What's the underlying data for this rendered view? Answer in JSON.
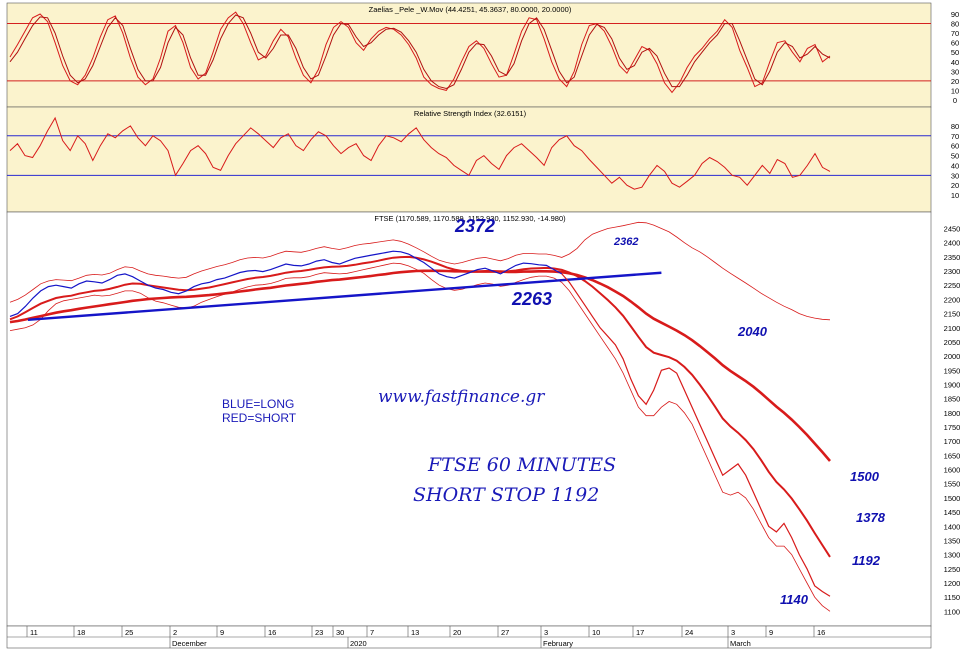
{
  "chart_data": [
    {
      "panel": "oscillator",
      "type": "line",
      "title": "Zaelias _Pele _W.Mov (44.4251, 45.3637, 80.0000, 20.0000)",
      "ylim": [
        0,
        90
      ],
      "y_ticks": [
        "90",
        "80",
        "70",
        "60",
        "50",
        "40",
        "30",
        "20",
        "10",
        "0"
      ],
      "levels": [
        80,
        20
      ],
      "series": [
        {
          "values": [
            45,
            58,
            72,
            86,
            90,
            82,
            60,
            36,
            20,
            16,
            26,
            44,
            66,
            84,
            88,
            70,
            44,
            24,
            16,
            22,
            44,
            72,
            78,
            60,
            34,
            22,
            28,
            50,
            74,
            86,
            92,
            80,
            60,
            42,
            46,
            62,
            74,
            66,
            44,
            26,
            18,
            32,
            58,
            76,
            82,
            76,
            60,
            52,
            64,
            72,
            76,
            74,
            68,
            58,
            44,
            24,
            16,
            12,
            10,
            22,
            40,
            56,
            62,
            54,
            38,
            24,
            26,
            48,
            72,
            86,
            84,
            64,
            40,
            22,
            14,
            30,
            58,
            78,
            80,
            72,
            56,
            36,
            28,
            42,
            56,
            52,
            38,
            18,
            8,
            18,
            34,
            46,
            54,
            64,
            72,
            84,
            76,
            52,
            34,
            14,
            18,
            40,
            60,
            62,
            50,
            40,
            54,
            58,
            40,
            46
          ]
        },
        {
          "values": [
            40,
            50,
            64,
            78,
            87,
            86,
            70,
            46,
            26,
            18,
            22,
            36,
            56,
            76,
            86,
            78,
            54,
            32,
            20,
            20,
            34,
            60,
            76,
            68,
            44,
            26,
            26,
            42,
            64,
            80,
            89,
            86,
            70,
            50,
            44,
            54,
            68,
            68,
            54,
            34,
            22,
            26,
            46,
            68,
            80,
            79,
            66,
            56,
            60,
            68,
            74,
            75,
            71,
            62,
            50,
            32,
            20,
            14,
            12,
            16,
            32,
            50,
            59,
            58,
            46,
            30,
            26,
            38,
            62,
            80,
            86,
            74,
            52,
            30,
            18,
            24,
            46,
            68,
            79,
            76,
            64,
            44,
            32,
            36,
            50,
            54,
            46,
            28,
            14,
            14,
            26,
            40,
            50,
            60,
            68,
            80,
            80,
            62,
            42,
            22,
            16,
            30,
            50,
            60,
            56,
            44,
            48,
            56,
            48,
            44
          ]
        }
      ]
    },
    {
      "panel": "rsi",
      "type": "line",
      "title": "Relative Strength Index (32.6151)",
      "ylim": [
        0,
        90
      ],
      "y_ticks": [
        "80",
        "70",
        "60",
        "50",
        "40",
        "30",
        "20",
        "10"
      ],
      "levels": [
        70,
        30
      ],
      "series": [
        {
          "values": [
            55,
            62,
            50,
            48,
            60,
            75,
            88,
            65,
            55,
            70,
            62,
            45,
            60,
            72,
            68,
            75,
            80,
            68,
            60,
            70,
            65,
            55,
            30,
            42,
            55,
            60,
            52,
            38,
            35,
            50,
            62,
            70,
            78,
            72,
            65,
            58,
            68,
            72,
            60,
            55,
            66,
            74,
            70,
            60,
            52,
            58,
            62,
            50,
            45,
            60,
            70,
            68,
            64,
            72,
            78,
            66,
            58,
            52,
            48,
            40,
            35,
            30,
            45,
            50,
            42,
            36,
            50,
            58,
            62,
            55,
            48,
            40,
            58,
            66,
            70,
            60,
            55,
            46,
            38,
            30,
            22,
            28,
            20,
            16,
            18,
            30,
            40,
            34,
            22,
            18,
            24,
            30,
            42,
            48,
            44,
            38,
            30,
            28,
            20,
            30,
            40,
            32,
            46,
            42,
            28,
            30,
            40,
            52,
            38,
            34
          ]
        }
      ]
    },
    {
      "panel": "price",
      "type": "line",
      "title": "FTSE (1170.589, 1170.589, 1152.930, 1152.930, -14.980)",
      "ylim": [
        1080,
        2480
      ],
      "y_ticks": [
        "2450",
        "2400",
        "2350",
        "2300",
        "2250",
        "2200",
        "2150",
        "2100",
        "2050",
        "2000",
        "1950",
        "1900",
        "1850",
        "1800",
        "1750",
        "1700",
        "1650",
        "1600",
        "1550",
        "1500",
        "1450",
        "1400",
        "1350",
        "1300",
        "1250",
        "1200",
        "1150",
        "1100"
      ],
      "x_ticks": [
        "11",
        "18",
        "25",
        "2",
        "9",
        "16",
        "23",
        "30",
        "7",
        "13",
        "20",
        "27",
        "3",
        "10",
        "17",
        "24",
        "3",
        "9",
        "16"
      ],
      "x_group_labels": [
        "December",
        "2020",
        "February",
        "March"
      ],
      "close": [
        2140,
        2150,
        2175,
        2205,
        2230,
        2245,
        2250,
        2245,
        2240,
        2255,
        2265,
        2262,
        2258,
        2270,
        2285,
        2290,
        2280,
        2265,
        2250,
        2240,
        2235,
        2225,
        2220,
        2230,
        2245,
        2255,
        2260,
        2270,
        2275,
        2285,
        2295,
        2300,
        2302,
        2298,
        2305,
        2315,
        2325,
        2320,
        2318,
        2325,
        2335,
        2340,
        2330,
        2325,
        2335,
        2345,
        2350,
        2355,
        2360,
        2365,
        2370,
        2368,
        2360,
        2345,
        2330,
        2310,
        2290,
        2280,
        2275,
        2285,
        2295,
        2305,
        2310,
        2300,
        2290,
        2305,
        2320,
        2328,
        2326,
        2322,
        2320,
        2305,
        2290,
        2260,
        2220,
        2180,
        2140,
        2100,
        2070,
        2040,
        1990,
        1920,
        1860,
        1830,
        1880,
        1950,
        1958,
        1940,
        1880,
        1820,
        1760,
        1700,
        1640,
        1580,
        1600,
        1620,
        1580,
        1520,
        1460,
        1400,
        1380,
        1410,
        1360,
        1300,
        1250,
        1190,
        1170,
        1153
      ],
      "ma_short": [
        2130,
        2140,
        2155,
        2170,
        2185,
        2195,
        2205,
        2210,
        2213,
        2220,
        2225,
        2230,
        2232,
        2237,
        2244,
        2252,
        2256,
        2255,
        2250,
        2246,
        2242,
        2238,
        2234,
        2232,
        2234,
        2238,
        2242,
        2248,
        2254,
        2260,
        2266,
        2272,
        2276,
        2279,
        2283,
        2288,
        2294,
        2298,
        2300,
        2304,
        2309,
        2313,
        2315,
        2316,
        2318,
        2322,
        2327,
        2331,
        2336,
        2342,
        2347,
        2349,
        2350,
        2347,
        2341,
        2333,
        2323,
        2313,
        2305,
        2300,
        2298,
        2298,
        2300,
        2300,
        2298,
        2299,
        2302,
        2306,
        2309,
        2310,
        2311,
        2309,
        2304,
        2295,
        2282,
        2265,
        2245,
        2222,
        2198,
        2172,
        2142,
        2106,
        2068,
        2032,
        2012,
        2004,
        1996,
        1984,
        1962,
        1934,
        1900,
        1862,
        1822,
        1780,
        1752,
        1730,
        1704,
        1672,
        1634,
        1592,
        1556,
        1530,
        1498,
        1460,
        1420,
        1376,
        1334,
        1292
      ],
      "ma_long": [
        2120,
        2124,
        2129,
        2135,
        2141,
        2147,
        2153,
        2158,
        2162,
        2167,
        2171,
        2175,
        2179,
        2183,
        2187,
        2191,
        2195,
        2198,
        2201,
        2203,
        2205,
        2207,
        2208,
        2209,
        2211,
        2213,
        2215,
        2218,
        2221,
        2224,
        2228,
        2231,
        2235,
        2238,
        2241,
        2245,
        2249,
        2252,
        2255,
        2258,
        2262,
        2265,
        2268,
        2270,
        2273,
        2276,
        2279,
        2282,
        2286,
        2289,
        2293,
        2296,
        2298,
        2300,
        2301,
        2301,
        2301,
        2300,
        2299,
        2299,
        2298,
        2298,
        2298,
        2298,
        2298,
        2297,
        2297,
        2298,
        2298,
        2299,
        2299,
        2298,
        2296,
        2292,
        2286,
        2278,
        2268,
        2256,
        2243,
        2228,
        2212,
        2193,
        2172,
        2150,
        2132,
        2118,
        2104,
        2090,
        2074,
        2056,
        2036,
        2014,
        1992,
        1968,
        1948,
        1930,
        1912,
        1892,
        1870,
        1846,
        1822,
        1800,
        1776,
        1750,
        1722,
        1692,
        1662,
        1630
      ],
      "band_upper": [
        2190,
        2200,
        2215,
        2235,
        2255,
        2265,
        2270,
        2268,
        2266,
        2275,
        2285,
        2288,
        2286,
        2292,
        2305,
        2315,
        2312,
        2300,
        2290,
        2285,
        2282,
        2278,
        2275,
        2278,
        2290,
        2300,
        2308,
        2316,
        2322,
        2330,
        2340,
        2346,
        2348,
        2346,
        2352,
        2362,
        2370,
        2368,
        2366,
        2372,
        2380,
        2386,
        2380,
        2376,
        2382,
        2390,
        2395,
        2398,
        2402,
        2406,
        2410,
        2405,
        2395,
        2382,
        2368,
        2352,
        2338,
        2330,
        2325,
        2330,
        2338,
        2345,
        2348,
        2342,
        2336,
        2344,
        2356,
        2362,
        2362,
        2360,
        2360,
        2355,
        2348,
        2360,
        2380,
        2410,
        2430,
        2440,
        2450,
        2455,
        2460,
        2466,
        2472,
        2470,
        2462,
        2450,
        2438,
        2420,
        2400,
        2382,
        2368,
        2350,
        2330,
        2310,
        2292,
        2275,
        2258,
        2240,
        2222,
        2206,
        2190,
        2176,
        2164,
        2150,
        2140,
        2134,
        2130,
        2128
      ],
      "band_lower": [
        2090,
        2095,
        2100,
        2110,
        2130,
        2160,
        2185,
        2195,
        2200,
        2205,
        2210,
        2215,
        2212,
        2214,
        2222,
        2230,
        2230,
        2222,
        2206,
        2194,
        2188,
        2180,
        2172,
        2170,
        2176,
        2190,
        2200,
        2210,
        2218,
        2226,
        2236,
        2244,
        2250,
        2252,
        2256,
        2264,
        2274,
        2276,
        2276,
        2280,
        2288,
        2294,
        2292,
        2290,
        2292,
        2298,
        2304,
        2310,
        2316,
        2322,
        2328,
        2326,
        2318,
        2306,
        2292,
        2270,
        2250,
        2238,
        2232,
        2236,
        2244,
        2252,
        2258,
        2254,
        2246,
        2250,
        2260,
        2270,
        2278,
        2282,
        2282,
        2275,
        2260,
        2230,
        2190,
        2150,
        2110,
        2070,
        2030,
        1990,
        1940,
        1880,
        1820,
        1790,
        1790,
        1820,
        1840,
        1830,
        1800,
        1760,
        1700,
        1640,
        1580,
        1520,
        1510,
        1520,
        1500,
        1460,
        1410,
        1360,
        1330,
        1330,
        1300,
        1250,
        1200,
        1150,
        1120,
        1100
      ],
      "trendline": [
        [
          0,
          2128
        ],
        [
          85,
          2294
        ]
      ]
    }
  ],
  "annotations": {
    "peak_label": "2372",
    "support_label": "2263",
    "high_label": "2362",
    "level_2040": "2040",
    "level_1500": "1500",
    "level_1378": "1378",
    "level_1192": "1192",
    "level_1140": "1140",
    "legend_long": "BLUE=LONG",
    "legend_short": "RED=SHORT",
    "website": "www.fastfinance.gr",
    "caption_line1": "FTSE 60 MINUTES",
    "caption_line2": "SHORT STOP 1192"
  },
  "colors": {
    "panel_bg": "#fbf3cd",
    "line_red": "#d81b1b",
    "line_blue": "#1515c8",
    "level_red": "#d42020",
    "level_blue": "#2a2ad0"
  }
}
